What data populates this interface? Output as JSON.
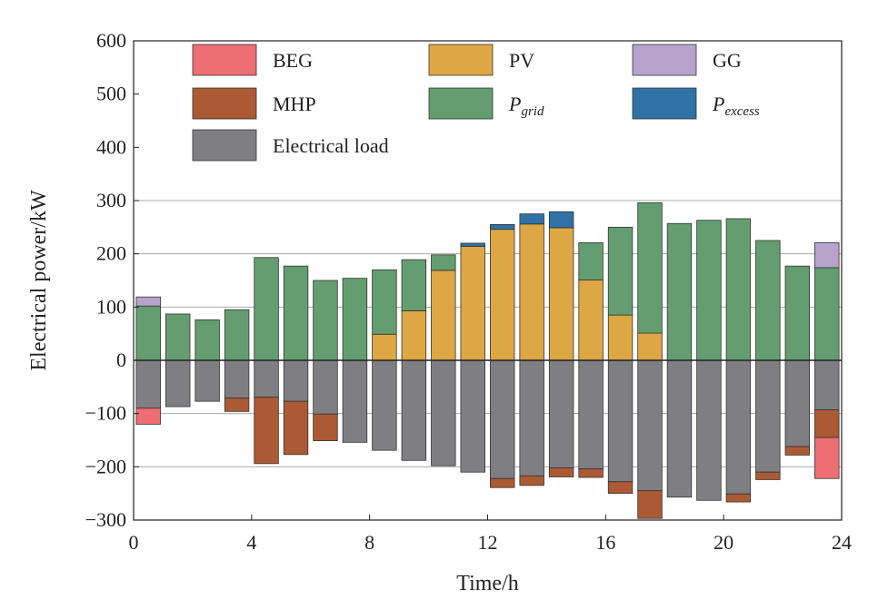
{
  "chart_data": {
    "type": "bar",
    "stacked": true,
    "title": "",
    "xlabel": "Time/h",
    "ylabel": "Electrical power/kW",
    "xlim": [
      0,
      24
    ],
    "ylim": [
      -300,
      600
    ],
    "xticks": [
      0,
      4,
      8,
      12,
      16,
      20,
      24
    ],
    "yticks": [
      -300,
      -200,
      -100,
      0,
      100,
      200,
      300,
      400,
      500,
      600
    ],
    "ygrid": [
      -200,
      -100,
      100,
      200,
      300
    ],
    "grid": "horizontal",
    "legend_position": "top",
    "x": [
      0.5,
      1.5,
      2.5,
      3.5,
      4.5,
      5.5,
      6.5,
      7.5,
      8.5,
      9.5,
      10.5,
      11.5,
      12.5,
      13.5,
      14.5,
      15.5,
      16.5,
      17.5,
      18.5,
      19.5,
      20.5,
      21.5,
      22.5,
      23.5
    ],
    "positive_series": [
      {
        "key": "pv",
        "name": "PV",
        "color": "#dda743",
        "values": [
          0,
          0,
          0,
          0,
          0,
          0,
          0,
          0,
          49,
          93,
          169,
          214,
          246,
          256,
          249,
          151,
          85,
          51,
          0,
          0,
          0,
          0,
          0,
          0
        ]
      },
      {
        "key": "grid",
        "name": "P_grid",
        "color": "#649e70",
        "values": [
          102,
          87,
          76,
          95,
          193,
          177,
          150,
          154,
          121,
          96,
          29,
          0,
          0,
          0,
          0,
          70,
          165,
          245,
          257,
          263,
          266,
          225,
          177,
          174
        ]
      },
      {
        "key": "excess",
        "name": "P_excess",
        "color": "#2f72a6",
        "values": [
          0,
          0,
          0,
          0,
          0,
          0,
          0,
          0,
          0,
          0,
          0,
          6,
          9,
          19,
          30,
          0,
          0,
          0,
          0,
          0,
          0,
          0,
          0,
          0
        ]
      },
      {
        "key": "gg",
        "name": "GG",
        "color": "#b8a3cd",
        "values": [
          17,
          0,
          0,
          0,
          0,
          0,
          0,
          0,
          0,
          0,
          0,
          0,
          0,
          0,
          0,
          0,
          0,
          0,
          0,
          0,
          0,
          0,
          0,
          47
        ]
      }
    ],
    "negative_series": [
      {
        "key": "load",
        "name": "Electrical load",
        "color": "#7f7f83",
        "values": [
          -90,
          -87,
          -77,
          -71,
          -69,
          -77,
          -101,
          -154,
          -169,
          -188,
          -198,
          -210,
          -222,
          -217,
          -202,
          -204,
          -228,
          -245,
          -257,
          -263,
          -251,
          -210,
          -162,
          -93
        ]
      },
      {
        "key": "mhp",
        "name": "MHP",
        "color": "#ac5a33",
        "values": [
          0,
          0,
          0,
          -25,
          -125,
          -100,
          -50,
          0,
          0,
          0,
          0,
          0,
          -17,
          -18,
          -17,
          -16,
          -22,
          -52,
          0,
          0,
          -15,
          -14,
          -16,
          -52
        ]
      },
      {
        "key": "beg",
        "name": "BEG",
        "color": "#ee6e74",
        "values": [
          -30,
          0,
          0,
          0,
          0,
          0,
          0,
          0,
          0,
          0,
          0,
          0,
          0,
          0,
          0,
          0,
          0,
          0,
          0,
          0,
          0,
          0,
          0,
          -77
        ]
      }
    ],
    "legend": [
      {
        "label": "BEG",
        "sub": "",
        "color": "#ee6e74",
        "row": 0,
        "col": 0
      },
      {
        "label": "PV",
        "sub": "",
        "color": "#dda743",
        "row": 0,
        "col": 1
      },
      {
        "label": "GG",
        "sub": "",
        "color": "#b8a3cd",
        "row": 0,
        "col": 2
      },
      {
        "label": "MHP",
        "sub": "",
        "color": "#ac5a33",
        "row": 1,
        "col": 0
      },
      {
        "label": "P",
        "sub": "grid",
        "color": "#649e70",
        "row": 1,
        "col": 1
      },
      {
        "label": "P",
        "sub": "excess",
        "color": "#2f72a6",
        "row": 1,
        "col": 2
      },
      {
        "label": "Electrical load",
        "sub": "",
        "color": "#7f7f83",
        "row": 2,
        "col": 0
      }
    ]
  }
}
